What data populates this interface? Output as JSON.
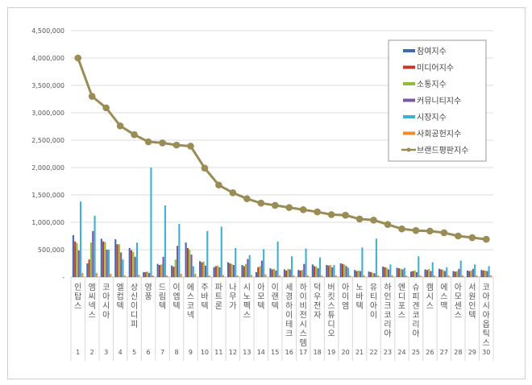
{
  "chart_data": {
    "type": "bar",
    "title": "",
    "xlabel": "",
    "ylabel": "",
    "ylim": [
      0,
      4500000
    ],
    "y_ticks": [
      "-",
      "500,000",
      "1,000,000",
      "1,500,000",
      "2,000,000",
      "2,500,000",
      "3,000,000",
      "3,500,000",
      "4,000,000",
      "4,500,000"
    ],
    "grid": true,
    "legend_position": "top-right",
    "ranks": [
      "1",
      "2",
      "3",
      "4",
      "5",
      "6",
      "7",
      "8",
      "9",
      "10",
      "11",
      "12",
      "13",
      "14",
      "15",
      "16",
      "17",
      "18",
      "19",
      "20",
      "21",
      "22",
      "23",
      "24",
      "25",
      "26",
      "27",
      "28",
      "29",
      "30"
    ],
    "categories": [
      "인탑스",
      "엠씨넥스",
      "코아시아",
      "엘컴텍",
      "상신이디피",
      "영풍",
      "드림텍",
      "이엠텍",
      "에스코넥",
      "주바텍",
      "파트론",
      "나무가",
      "시노펙스",
      "아모텍",
      "이랜텍",
      "세경하이테크",
      "하이비전시스템",
      "덕우전자",
      "버킷스튜디오",
      "아이엠",
      "노바텍",
      "유티아이",
      "하인크코리아",
      "엔디포스",
      "슈피겐코리아",
      "캠시스",
      "에스맥",
      "아모센스",
      "서원인텍",
      "코아시아옵틱스"
    ],
    "series": [
      {
        "name": "참여지수",
        "color": "#3d6bb0",
        "values": [
          765000,
          250000,
          700000,
          690000,
          530000,
          90000,
          240000,
          210000,
          630000,
          290000,
          180000,
          270000,
          220000,
          90000,
          160000,
          140000,
          130000,
          230000,
          220000,
          250000,
          130000,
          100000,
          190000,
          170000,
          100000,
          140000,
          150000,
          110000,
          120000,
          130000
        ]
      },
      {
        "name": "미디어지수",
        "color": "#c0392b",
        "values": [
          650000,
          320000,
          650000,
          600000,
          490000,
          90000,
          220000,
          190000,
          530000,
          270000,
          200000,
          250000,
          200000,
          180000,
          140000,
          120000,
          120000,
          200000,
          210000,
          240000,
          110000,
          90000,
          180000,
          160000,
          110000,
          130000,
          140000,
          100000,
          110000,
          120000
        ]
      },
      {
        "name": "소통지수",
        "color": "#8fbc3c",
        "values": [
          620000,
          630000,
          640000,
          600000,
          460000,
          100000,
          230000,
          320000,
          500000,
          280000,
          210000,
          240000,
          240000,
          200000,
          150000,
          150000,
          130000,
          190000,
          220000,
          230000,
          120000,
          80000,
          170000,
          150000,
          120000,
          150000,
          130000,
          110000,
          120000,
          120000
        ]
      },
      {
        "name": "커뮤니티지수",
        "color": "#7b57a8",
        "values": [
          485000,
          840000,
          500000,
          450000,
          370000,
          75000,
          370000,
          570000,
          410000,
          210000,
          180000,
          220000,
          330000,
          300000,
          120000,
          140000,
          240000,
          160000,
          180000,
          200000,
          110000,
          70000,
          140000,
          140000,
          90000,
          110000,
          110000,
          150000,
          150000,
          110000
        ]
      },
      {
        "name": "시장지수",
        "color": "#3fb0cf",
        "values": [
          1380000,
          1120000,
          500000,
          320000,
          630000,
          2000000,
          1310000,
          970000,
          200000,
          840000,
          920000,
          530000,
          400000,
          510000,
          650000,
          380000,
          520000,
          360000,
          220000,
          170000,
          540000,
          700000,
          230000,
          170000,
          380000,
          270000,
          180000,
          300000,
          230000,
          200000
        ]
      },
      {
        "name": "사회공헌지수",
        "color": "#ef8a2e",
        "values": [
          75000,
          75000,
          60000,
          30000,
          45000,
          30000,
          30000,
          60000,
          60000,
          30000,
          35000,
          30000,
          40000,
          50000,
          30000,
          30000,
          30000,
          30000,
          30000,
          30000,
          30000,
          30000,
          30000,
          30000,
          30000,
          30000,
          30000,
          30000,
          30000,
          30000
        ]
      }
    ],
    "line_series": {
      "name": "브랜드평판지수",
      "color": "#9a8c55",
      "values": [
        4000000,
        3300000,
        3090000,
        2760000,
        2600000,
        2470000,
        2450000,
        2410000,
        2390000,
        1990000,
        1680000,
        1540000,
        1430000,
        1350000,
        1310000,
        1270000,
        1230000,
        1190000,
        1140000,
        1130000,
        1060000,
        1040000,
        960000,
        880000,
        850000,
        840000,
        810000,
        750000,
        720000,
        690000
      ]
    }
  }
}
